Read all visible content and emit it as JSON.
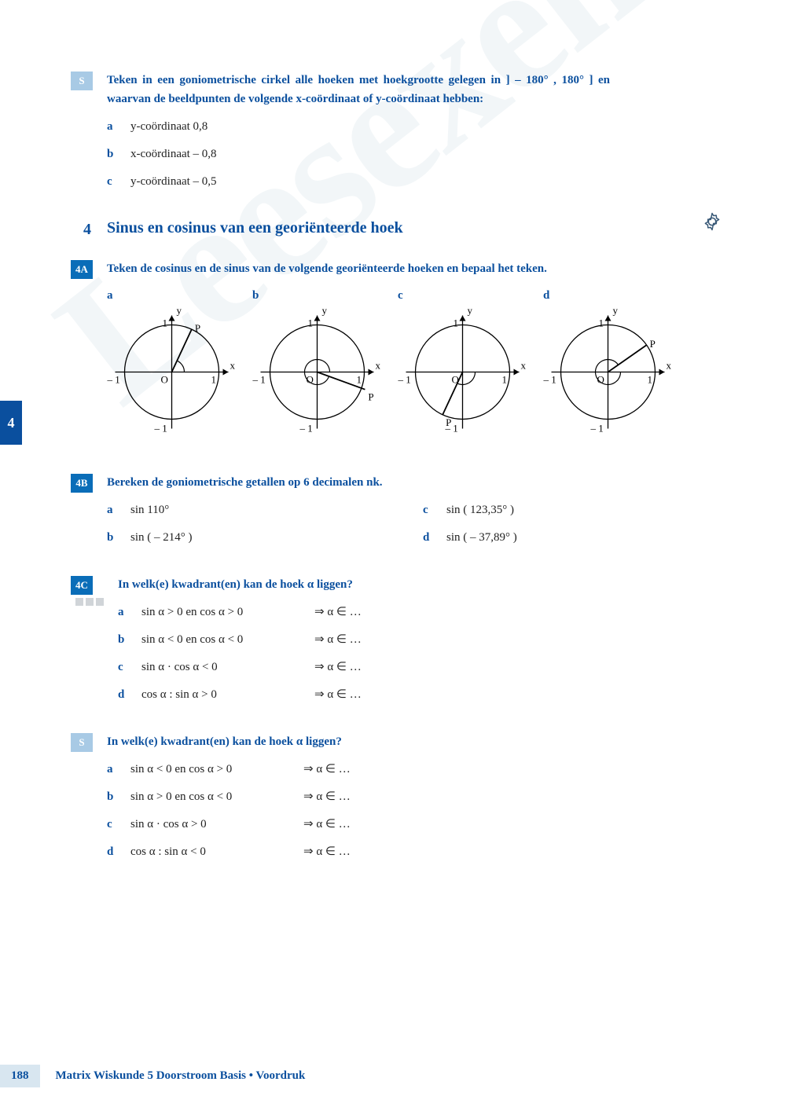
{
  "watermark": "Leesexemplaar",
  "side_tab": "4",
  "page_number": "188",
  "footer": "Matrix Wiskunde 5 Doorstroom Basis • Voordruk",
  "colors": {
    "primary": "#0a4f9e",
    "tag_bg": "#0a6db8",
    "tag_light": "#a8cae5",
    "dot": "#d0d4d8",
    "footer_bg": "#d8e6f0"
  },
  "ex_s1": {
    "tag": "S",
    "title": "Teken in een goniometrische cirkel alle hoeken met hoekgrootte gelegen in ] – 180° , 180° ] en waarvan de beeldpunten de volgende x-coördinaat of y-coördinaat hebben:",
    "items": [
      {
        "label": "a",
        "text": "y-coördinaat 0,8"
      },
      {
        "label": "b",
        "text": "x-coördinaat – 0,8"
      },
      {
        "label": "c",
        "text": "y-coördinaat – 0,5"
      }
    ]
  },
  "section4": {
    "num": "4",
    "title": "Sinus en cosinus van een georiënteerde hoek"
  },
  "ex_4a": {
    "tag": "4A",
    "title": "Teken de cosinus en de sinus van de volgende georiënteerde hoeken en bepaal het teken.",
    "circles": [
      {
        "label": "a",
        "angle_deg": 65,
        "p_r": 1,
        "arc_from": 0,
        "arc_to": 65,
        "arc_ccw": true
      },
      {
        "label": "b",
        "angle_deg": -20,
        "p_r": 1.08,
        "arc_from": 0,
        "arc_to": 340,
        "arc_ccw": true
      },
      {
        "label": "c",
        "angle_deg": 245,
        "p_r": 1,
        "arc_from": 0,
        "arc_to": -115,
        "arc_ccw": false
      },
      {
        "label": "d",
        "angle_deg": 35,
        "p_r": 1,
        "arc_from": 0,
        "arc_to": -325,
        "arc_ccw": false
      }
    ],
    "circle_style": {
      "size": 165,
      "radius": 60,
      "stroke": "#000",
      "stroke_width": 1.3,
      "axis_labels": {
        "x": "x",
        "y": "y",
        "one": "1",
        "neg_one": "– 1",
        "origin": "O",
        "point": "P"
      },
      "font_size": 13
    }
  },
  "ex_4b": {
    "tag": "4B",
    "title": "Bereken de goniometrische getallen op 6 decimalen nk.",
    "left": [
      {
        "label": "a",
        "text": "sin 110°"
      },
      {
        "label": "b",
        "text": "sin ( – 214° )"
      }
    ],
    "right": [
      {
        "label": "c",
        "text": "sin ( 123,35° )"
      },
      {
        "label": "d",
        "text": "sin ( – 37,89° )"
      }
    ]
  },
  "ex_4c": {
    "tag": "4C",
    "title": "In welk(e) kwadrant(en) kan de hoek α liggen?",
    "items": [
      {
        "label": "a",
        "lhs": "sin α > 0 en cos α > 0",
        "rhs": "⇒ α ∈ …"
      },
      {
        "label": "b",
        "lhs": "sin α < 0 en cos α < 0",
        "rhs": "⇒ α ∈ …"
      },
      {
        "label": "c",
        "lhs": "sin α · cos α < 0",
        "rhs": "⇒ α ∈ …"
      },
      {
        "label": "d",
        "lhs": "cos α : sin α > 0",
        "rhs": "⇒ α ∈ …"
      }
    ]
  },
  "ex_s2": {
    "tag": "S",
    "title": "In welk(e) kwadrant(en) kan de hoek α liggen?",
    "items": [
      {
        "label": "a",
        "lhs": "sin α < 0 en cos α > 0",
        "rhs": "⇒ α ∈ …"
      },
      {
        "label": "b",
        "lhs": "sin α > 0 en cos α < 0",
        "rhs": "⇒ α ∈ …"
      },
      {
        "label": "c",
        "lhs": "sin α · cos α > 0",
        "rhs": "⇒ α ∈ …"
      },
      {
        "label": "d",
        "lhs": "cos α : sin α < 0",
        "rhs": "⇒ α ∈ …"
      }
    ]
  }
}
